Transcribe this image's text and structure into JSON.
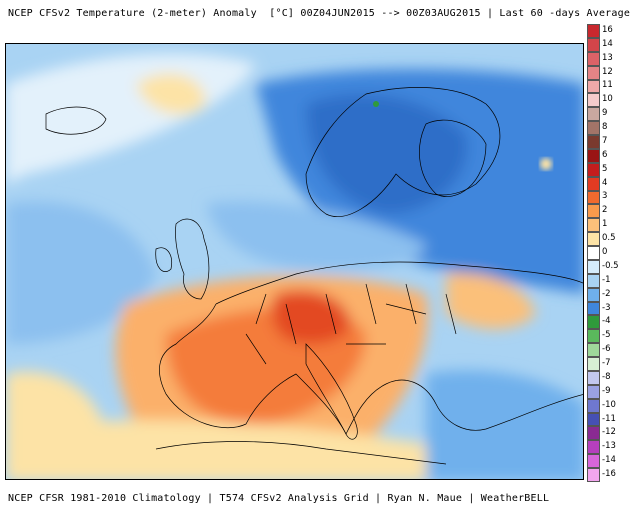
{
  "header": {
    "title": "NCEP CFSv2 Temperature (2-meter) Anomaly  [°C] 00Z04JUN2015 --> 00Z03AUG2015 | Last 60 -days Average"
  },
  "footer": {
    "text": "NCEP CFSR 1981-2010 Climatology | T574 CFSv2 Analysis Grid | Ryan N. Maue | WeatherBELL"
  },
  "legend": {
    "unit": "°C",
    "entries": [
      {
        "label": "16",
        "color": "#c8282e"
      },
      {
        "label": "14",
        "color": "#d2454a"
      },
      {
        "label": "13",
        "color": "#dc6267"
      },
      {
        "label": "12",
        "color": "#e58486"
      },
      {
        "label": "11",
        "color": "#efa8a8"
      },
      {
        "label": "10",
        "color": "#f5cccc"
      },
      {
        "label": "9",
        "color": "#c9a8a0"
      },
      {
        "label": "8",
        "color": "#a27468"
      },
      {
        "label": "7",
        "color": "#7a3a2e"
      },
      {
        "label": "6",
        "color": "#991414"
      },
      {
        "label": "5",
        "color": "#c41d1d"
      },
      {
        "label": "4",
        "color": "#e23b22"
      },
      {
        "label": "3",
        "color": "#f06a2e"
      },
      {
        "label": "2",
        "color": "#f89a4c"
      },
      {
        "label": "1",
        "color": "#fbc07a"
      },
      {
        "label": "0.5",
        "color": "#fde3a6"
      },
      {
        "label": "0",
        "color": "#ffffff"
      },
      {
        "label": "-0.5",
        "color": "#d6ecfb"
      },
      {
        "label": "-1",
        "color": "#a9d3f3"
      },
      {
        "label": "-2",
        "color": "#6fb0ec"
      },
      {
        "label": "-3",
        "color": "#3f86dc"
      },
      {
        "label": "-4",
        "color": "#2f9a3b"
      },
      {
        "label": "-5",
        "color": "#5ab95c"
      },
      {
        "label": "-6",
        "color": "#9fd89a"
      },
      {
        "label": "-7",
        "color": "#d8efd4"
      },
      {
        "label": "-8",
        "color": "#c2c7ee"
      },
      {
        "label": "-9",
        "color": "#9aa1e2"
      },
      {
        "label": "-10",
        "color": "#6f78cf"
      },
      {
        "label": "-11",
        "color": "#4650b4"
      },
      {
        "label": "-12",
        "color": "#8a2a92"
      },
      {
        "label": "-13",
        "color": "#b63fbd"
      },
      {
        "label": "-14",
        "color": "#d866da"
      },
      {
        "label": "-16",
        "color": "#f2a6ee"
      }
    ]
  },
  "map": {
    "region": "Europe",
    "colors": {
      "strong_warm": "#e34a22",
      "warm": "#f47c3a",
      "mild_warm": "#fbb06a",
      "slight_warm": "#fde3a6",
      "neutral": "#ffffff",
      "slight_cool": "#d6ecfb",
      "cool": "#a9d3f3",
      "cooler": "#6fb0ec",
      "coldest": "#3f86dc",
      "borders": "#000000"
    }
  }
}
